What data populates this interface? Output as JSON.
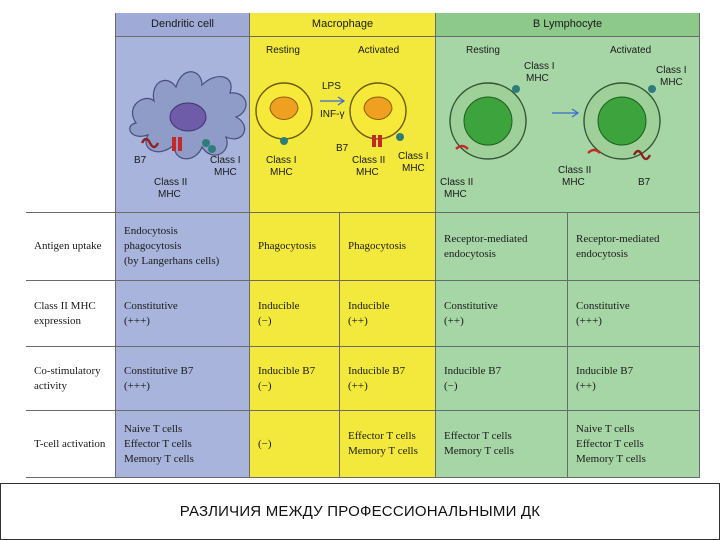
{
  "headers": {
    "dendritic": "Dendritic cell",
    "macrophage": "Macrophage",
    "blymph": "B Lymphocyte"
  },
  "diagram": {
    "mac_resting": "Resting",
    "mac_activated": "Activated",
    "b_resting": "Resting",
    "b_activated": "Activated",
    "lps": "LPS",
    "inf": "INF-γ",
    "b7": "B7",
    "class1_line1": "Class I",
    "class1_line2": "MHC",
    "class2_line1": "Class II",
    "class2_line2": "MHC"
  },
  "rows": [
    {
      "label": "Antigen uptake",
      "dc": "Endocytosis\nphagocytosis\n(by Langerhans cells)",
      "mac_rest": "Phagocytosis",
      "mac_act": "Phagocytosis",
      "b_rest": "Receptor-mediated\nendocytosis",
      "b_act": "Receptor-mediated\nendocytosis"
    },
    {
      "label": "Class II MHC\nexpression",
      "dc": "Constitutive\n(+++)",
      "mac_rest": "Inducible\n(−)",
      "mac_act": "Inducible\n(++)",
      "b_rest": "Constitutive\n(++)",
      "b_act": "Constitutive\n(+++)"
    },
    {
      "label": "Co-stimulatory\nactivity",
      "dc": "Constitutive B7\n(+++)",
      "mac_rest": "Inducible B7\n(−)",
      "mac_act": "Inducible B7\n(++)",
      "b_rest": "Inducible B7\n(−)",
      "b_act": "Inducible B7\n(++)"
    },
    {
      "label": "T-cell activation",
      "dc": "Naive T cells\nEffector T cells\nMemory T cells",
      "mac_rest": "(−)",
      "mac_act": "Effector T cells\nMemory T cells",
      "b_rest": "Effector T cells\nMemory T cells",
      "b_act": "Naive T cells\nEffector T cells\nMemory T cells"
    }
  ],
  "caption": "РАЗЛИЧИЯ МЕЖДУ ПРОФЕССИОНАЛЬНЫМИ ДК",
  "colors": {
    "dendritic": "#a9b4dc",
    "macrophage": "#f3e93c",
    "blymph": "#a7d6a6"
  }
}
